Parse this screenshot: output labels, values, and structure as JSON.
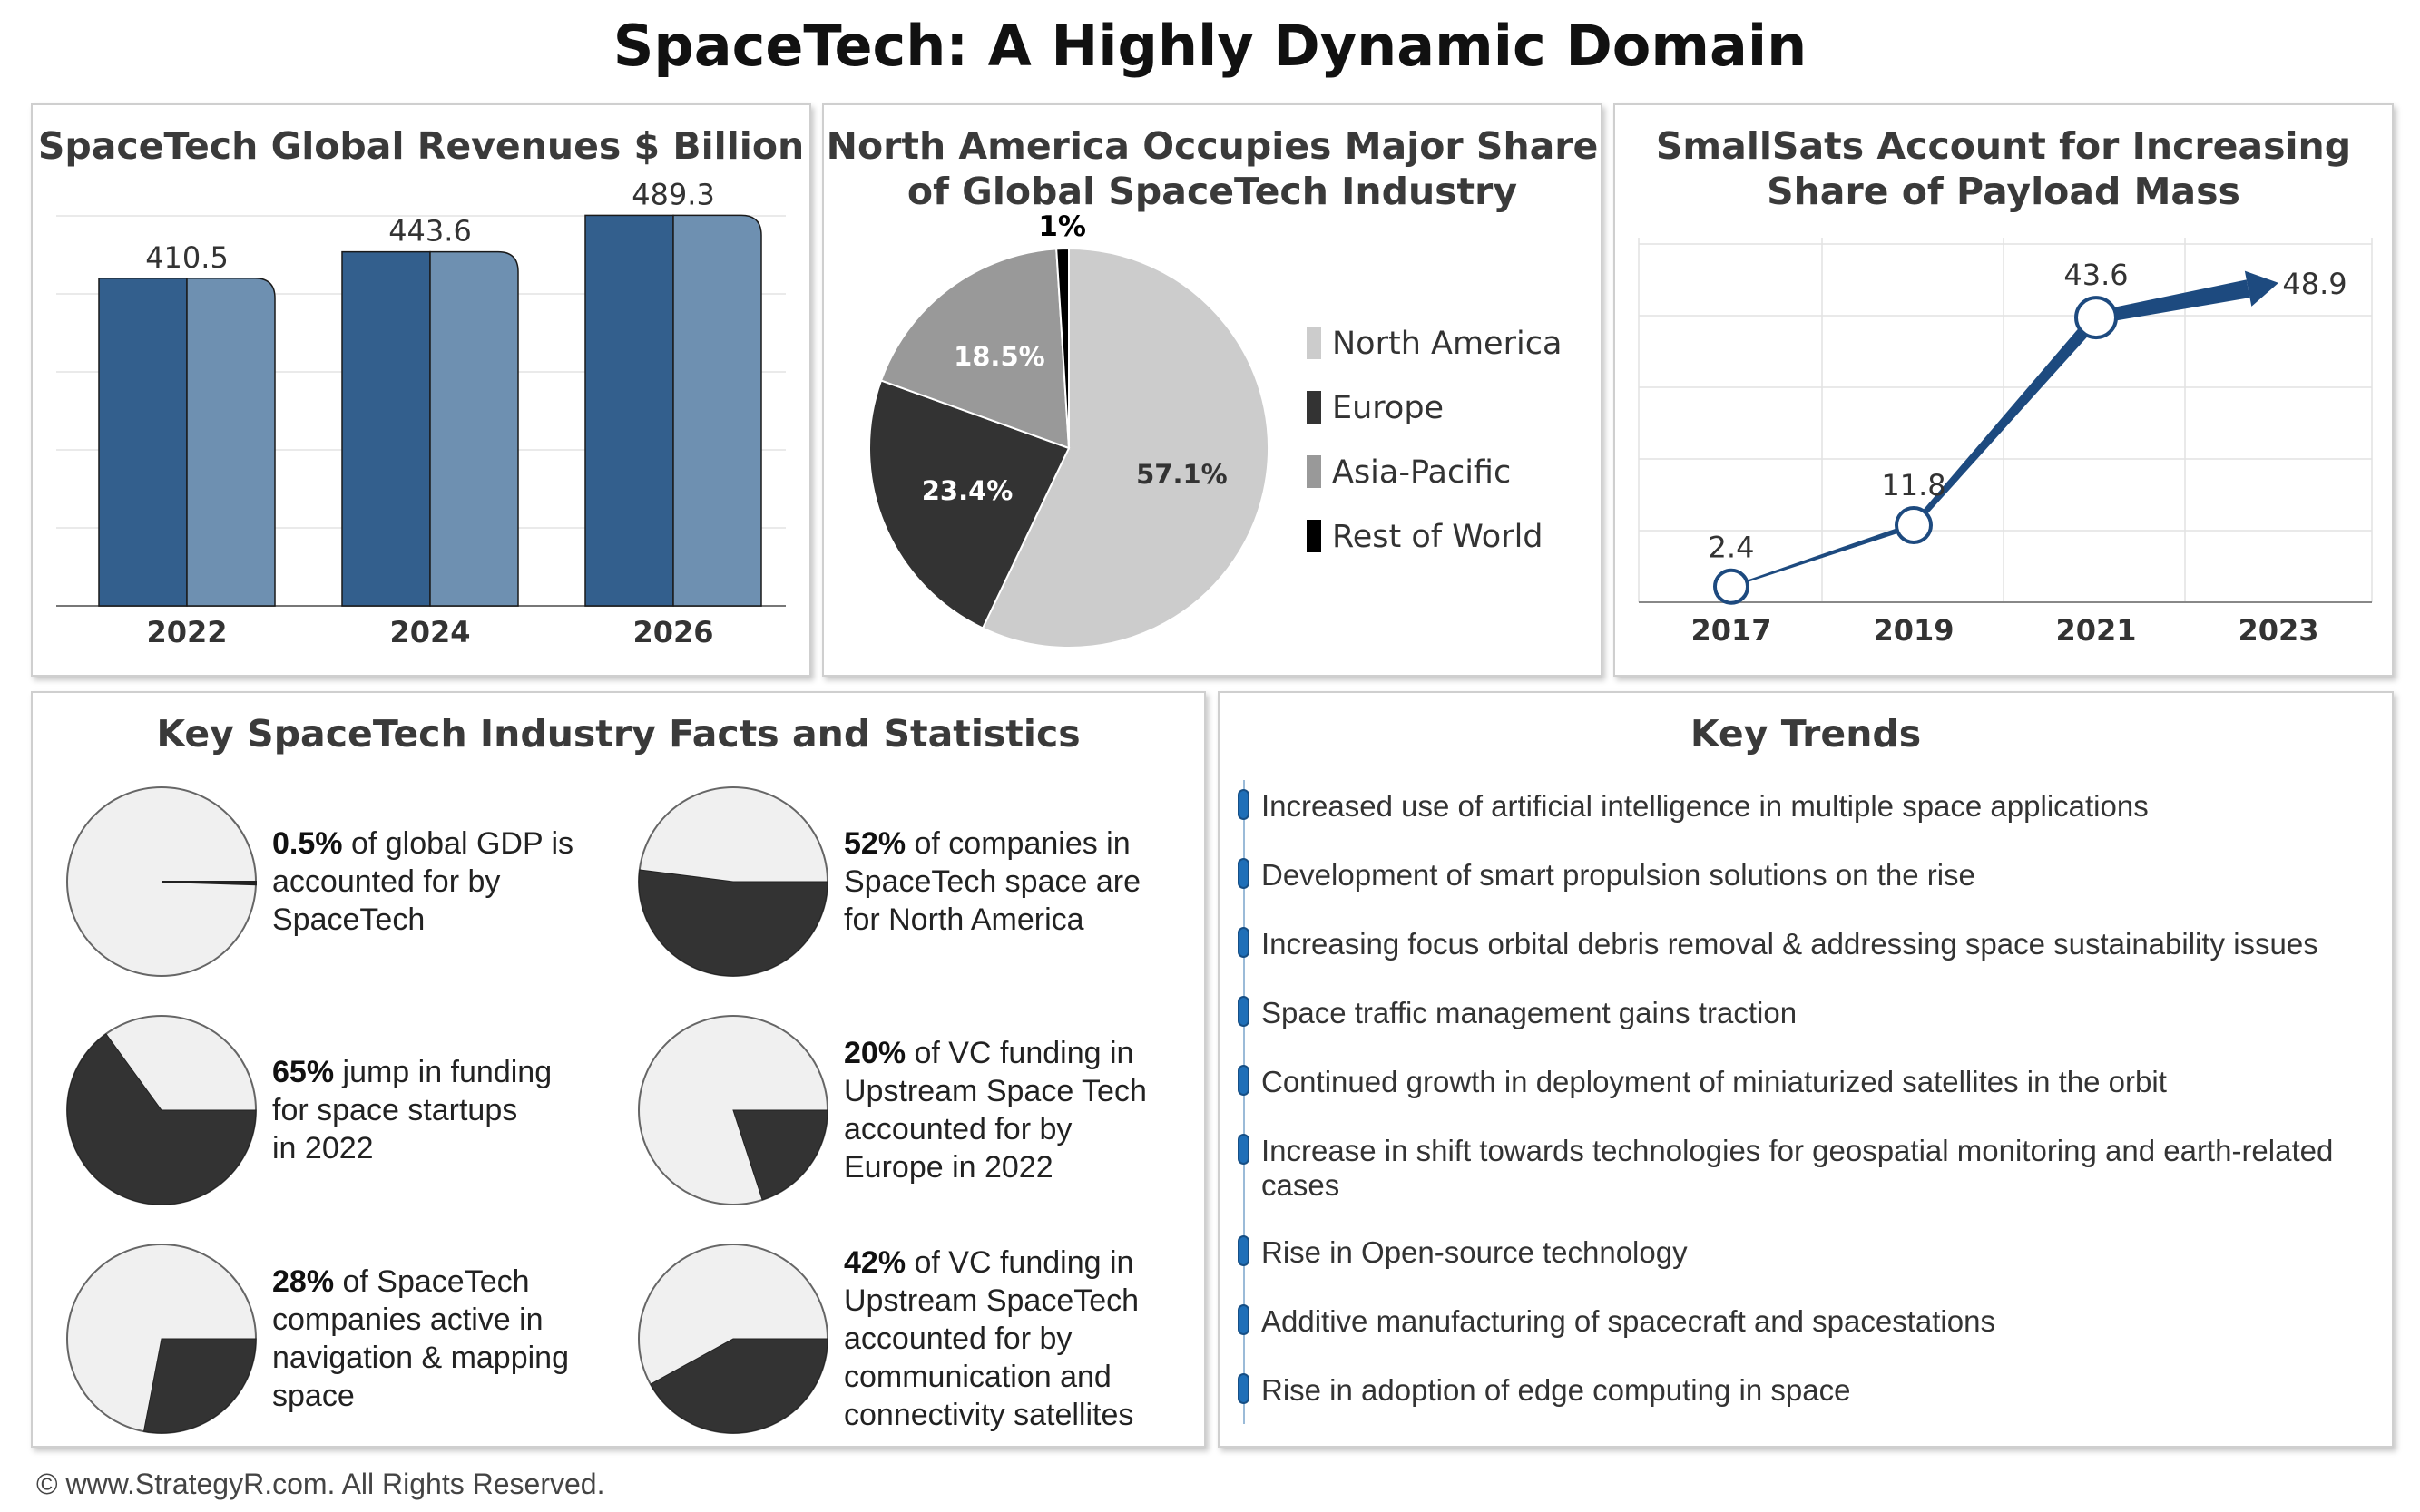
{
  "title": "SpaceTech: A Highly Dynamic Domain",
  "colors": {
    "bar_dark": "#335f8d",
    "bar_light": "#6e90b1",
    "line": "#1d4a7f",
    "na": "#cccccc",
    "europe": "#333333",
    "apac": "#999999",
    "row": "#000000",
    "fact_fill": "#333333",
    "fact_bg": "#f0f0f0",
    "trend_bullet": "#1f6fb8"
  },
  "chart_data": [
    {
      "type": "bar",
      "title": "SpaceTech Global Revenues $ Billion",
      "categories": [
        "2022",
        "2024",
        "2026"
      ],
      "values": [
        410.5,
        443.6,
        489.3
      ],
      "value_labels": [
        "410.5",
        "443.6",
        "489.3"
      ],
      "ylim": [
        0,
        500
      ],
      "grid": true
    },
    {
      "type": "pie",
      "title": "North America Occupies Major Share of Global SpaceTech Industry",
      "labels": [
        "North America",
        "Europe",
        "Asia-Pacific",
        "Rest of World"
      ],
      "values": [
        57.1,
        23.4,
        18.5,
        1
      ],
      "value_labels": [
        "57.1%",
        "23.4%",
        "18.5%",
        "1%"
      ],
      "legend": "right"
    },
    {
      "type": "line",
      "title": "SmallSats Account for Increasing Share of Payload Mass",
      "x": [
        "2017",
        "2019",
        "2021",
        "2023"
      ],
      "values": [
        2.4,
        11.8,
        43.6,
        48.9
      ],
      "value_labels": [
        "2.4",
        "11.8",
        "43.6",
        "48.9"
      ],
      "ylim": [
        0,
        55
      ],
      "grid": true
    }
  ],
  "facts": {
    "title": "Key SpaceTech Industry Facts and Statistics",
    "items": [
      {
        "value": 0.5,
        "bold": "0.5%",
        "lines": [
          " of global GDP is",
          "accounted for by",
          "SpaceTech"
        ]
      },
      {
        "value": 52,
        "bold": "52%",
        "lines": [
          " of companies in",
          "SpaceTech space are",
          "for North America"
        ]
      },
      {
        "value": 65,
        "bold": "65%",
        "lines": [
          " jump in funding",
          "for space startups",
          "in 2022"
        ]
      },
      {
        "value": 20,
        "bold": "20%",
        "lines": [
          " of VC funding in",
          "Upstream Space Tech",
          "accounted for by",
          "Europe in 2022"
        ]
      },
      {
        "value": 28,
        "bold": "28%",
        "lines": [
          " of SpaceTech",
          "companies active in",
          "navigation & mapping",
          "space"
        ]
      },
      {
        "value": 42,
        "bold": "42%",
        "lines": [
          " of VC funding in",
          "Upstream SpaceTech",
          "accounted for by",
          "communication and",
          "connectivity satellites"
        ]
      }
    ]
  },
  "trends": {
    "title": "Key Trends",
    "items": [
      "Increased use of artificial intelligence in multiple space applications",
      "Development of smart propulsion solutions on the rise",
      "Increasing focus orbital debris removal & addressing space sustainability issues",
      "Space traffic management gains traction",
      "Continued growth in deployment of miniaturized satellites in the orbit",
      "Increase in shift towards technologies for geospatial monitoring and earth-related cases",
      "Rise in Open-source technology",
      "Additive manufacturing of spacecraft and spacestations",
      "Rise in adoption of edge computing in space"
    ]
  },
  "footer": "© www.StrategyR.com. All Rights Reserved."
}
